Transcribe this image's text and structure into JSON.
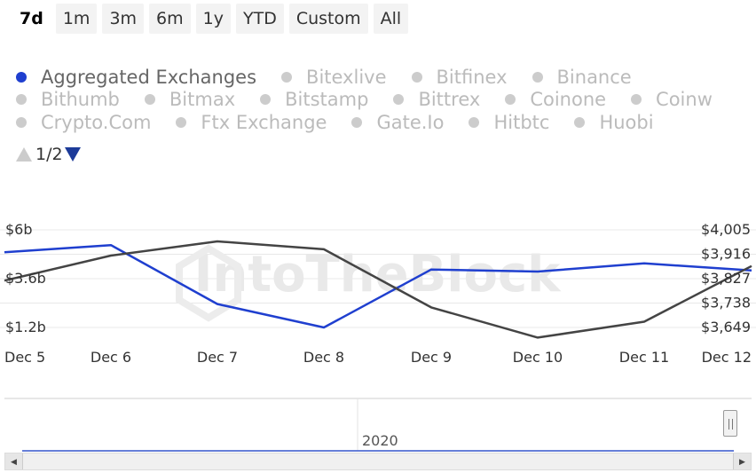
{
  "range_buttons": [
    {
      "label": "7d",
      "active": true
    },
    {
      "label": "1m",
      "active": false
    },
    {
      "label": "3m",
      "active": false
    },
    {
      "label": "6m",
      "active": false
    },
    {
      "label": "1y",
      "active": false
    },
    {
      "label": "YTD",
      "active": false
    },
    {
      "label": "Custom",
      "active": false
    },
    {
      "label": "All",
      "active": false
    }
  ],
  "legend_rows": [
    [
      {
        "label": "Aggregated Exchanges",
        "active": true
      },
      {
        "label": "Bitexlive",
        "active": false
      },
      {
        "label": "Bitfinex",
        "active": false
      },
      {
        "label": "Binance",
        "active": false
      }
    ],
    [
      {
        "label": "Bithumb",
        "active": false
      },
      {
        "label": "Bitmax",
        "active": false
      },
      {
        "label": "Bitstamp",
        "active": false
      },
      {
        "label": "Bittrex",
        "active": false
      },
      {
        "label": "Coinone",
        "active": false
      },
      {
        "label": "Coinw",
        "active": false
      }
    ],
    [
      {
        "label": "Crypto.Com",
        "active": false
      },
      {
        "label": "Ftx Exchange",
        "active": false
      },
      {
        "label": "Gate.Io",
        "active": false
      },
      {
        "label": "Hitbtc",
        "active": false
      },
      {
        "label": "Huobi",
        "active": false
      }
    ]
  ],
  "pager": {
    "text": "1/2"
  },
  "watermark": "IntoTheBlock",
  "navigator": {
    "year_label": "2020"
  },
  "colors": {
    "series_blue": "#1f3fcf",
    "series_dark": "#444444",
    "legend_active_dot": "#1f3fcf",
    "legend_inactive": "#bbbbbb"
  },
  "chart_data": {
    "type": "line",
    "categories": [
      "Dec 5",
      "Dec 6",
      "Dec 7",
      "Dec 8",
      "Dec 9",
      "Dec 10",
      "Dec 11",
      "Dec 12"
    ],
    "left_axis": {
      "ticks": [
        "$6b",
        "$3.6b",
        "$1.2b"
      ],
      "values": [
        6,
        3.6,
        1.2
      ],
      "range": [
        1.2,
        6
      ]
    },
    "right_axis": {
      "ticks": [
        "$4,005",
        "$3,916",
        "$3,827",
        "$3,738",
        "$3,649"
      ],
      "values": [
        4005,
        3916,
        3827,
        3738,
        3649
      ],
      "range": [
        3649,
        4005
      ]
    },
    "x": [
      0.05,
      1,
      2,
      3,
      4,
      5,
      6,
      7
    ],
    "series": [
      {
        "axis": "left",
        "color": "#1f3fcf",
        "values": [
          4.9,
          5.25,
          2.35,
          1.2,
          4.05,
          3.95,
          4.35,
          4.0
        ]
      },
      {
        "axis": "right",
        "color": "#444444",
        "values": [
          3820,
          3911,
          3963,
          3934,
          3722,
          3612,
          3670,
          3873
        ]
      }
    ],
    "grid": true,
    "legend": "top"
  }
}
